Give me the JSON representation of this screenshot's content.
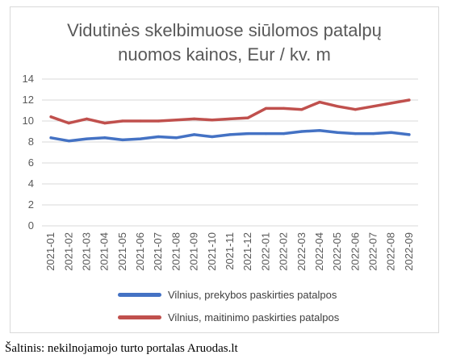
{
  "chart_data": {
    "type": "line",
    "title_line1": "Vidutinės skelbimuose siūlomos patalpų",
    "title_line2": "nuomos kainos, Eur / kv. m",
    "categories": [
      "2021-01",
      "2021-02",
      "2021-03",
      "2021-04",
      "2021-05",
      "2021-06",
      "2021-07",
      "2021-08",
      "2021-09",
      "2021-10",
      "2021-11",
      "2021-12",
      "2022-01",
      "2022-02",
      "2022-03",
      "2022-04",
      "2022-05",
      "2022-06",
      "2022-07",
      "2022-08",
      "2022-09"
    ],
    "y_ticks": [
      "0",
      "2",
      "4",
      "6",
      "8",
      "10",
      "12",
      "14"
    ],
    "ylim": [
      0,
      14
    ],
    "grid": true,
    "legend_position": "bottom",
    "series": [
      {
        "name": "Vilnius, prekybos paskirties patalpos",
        "color": "#4472c4",
        "values": [
          8.4,
          8.1,
          8.3,
          8.4,
          8.2,
          8.3,
          8.5,
          8.4,
          8.7,
          8.5,
          8.7,
          8.8,
          8.8,
          8.8,
          9.0,
          9.1,
          8.9,
          8.8,
          8.8,
          8.9,
          8.7
        ]
      },
      {
        "name": "Vilnius, maitinimo paskirties patalpos",
        "color": "#c0504d",
        "values": [
          10.4,
          9.8,
          10.2,
          9.8,
          10.0,
          10.0,
          10.0,
          10.1,
          10.2,
          10.1,
          10.2,
          10.3,
          11.2,
          11.2,
          11.1,
          11.8,
          11.4,
          11.1,
          11.4,
          11.7,
          12.0
        ]
      }
    ]
  },
  "source": "Šaltinis: nekilnojamojo turto portalas Aruodas.lt"
}
